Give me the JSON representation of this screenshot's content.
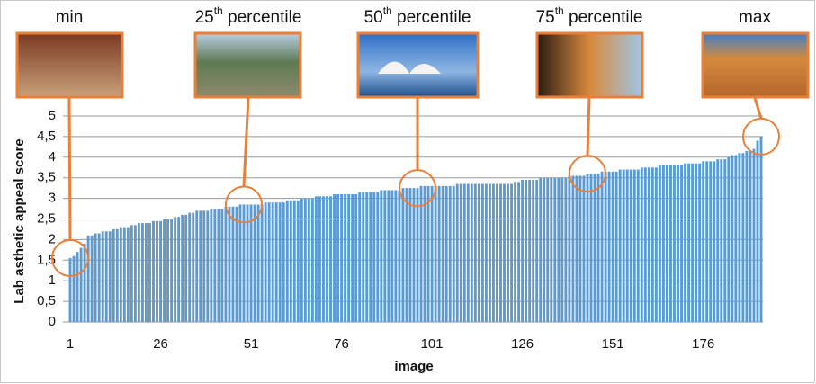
{
  "chart_data": {
    "type": "bar",
    "y_label": "Lab asthetic appeal score",
    "x_label": "image",
    "annotations": [
      {
        "text": "min"
      },
      {
        "text": "25",
        "sup": "th",
        "after": " percentile"
      },
      {
        "text": "50",
        "sup": "th",
        "after": " percentile"
      },
      {
        "text": "75",
        "sup": "th",
        "after": " percentile"
      },
      {
        "text": "max"
      }
    ],
    "color": "#5b9bd5",
    "grid": true,
    "ylim": [
      0,
      5
    ],
    "yticks": [
      0,
      {
        "value": 0.5,
        "label": "0,5"
      },
      1,
      {
        "value": 1.5,
        "label": "1,5"
      },
      2,
      {
        "value": 2.5,
        "label": "2,5"
      },
      3,
      {
        "value": 3.5,
        "label": "3,5"
      },
      4,
      {
        "value": 4.5,
        "label": "4,5"
      },
      5
    ],
    "categories": [
      "1",
      null,
      null,
      null,
      null,
      null,
      null,
      null,
      null,
      null,
      null,
      null,
      null,
      null,
      null,
      null,
      null,
      null,
      null,
      null,
      null,
      null,
      null,
      null,
      null,
      "26",
      null,
      null,
      null,
      null,
      null,
      null,
      null,
      null,
      null,
      null,
      null,
      null,
      null,
      null,
      null,
      null,
      null,
      null,
      null,
      null,
      null,
      null,
      null,
      null,
      "51",
      null,
      null,
      null,
      null,
      null,
      null,
      null,
      null,
      null,
      null,
      null,
      null,
      null,
      null,
      null,
      null,
      null,
      null,
      null,
      null,
      null,
      null,
      null,
      null,
      "76",
      null,
      null,
      null,
      null,
      null,
      null,
      null,
      null,
      null,
      null,
      null,
      null,
      null,
      null,
      null,
      null,
      null,
      null,
      null,
      null,
      null,
      null,
      null,
      null,
      "101",
      null,
      null,
      null,
      null,
      null,
      null,
      null,
      null,
      null,
      null,
      null,
      null,
      null,
      null,
      null,
      null,
      null,
      null,
      null,
      null,
      null,
      null,
      null,
      null,
      "126",
      null,
      null,
      null,
      null,
      null,
      null,
      null,
      null,
      null,
      null,
      null,
      null,
      null,
      null,
      null,
      null,
      null,
      null,
      null,
      null,
      null,
      null,
      null,
      null,
      "151",
      null,
      null,
      null,
      null,
      null,
      null,
      null,
      null,
      null,
      null,
      null,
      null,
      null,
      null,
      null,
      null,
      null,
      null,
      null,
      null,
      null,
      null,
      null,
      null,
      "176",
      null,
      null,
      null,
      null,
      null,
      null,
      null,
      null,
      null,
      null,
      null,
      null,
      null,
      null,
      null,
      null
    ],
    "values": [
      1.55,
      1.6,
      1.7,
      1.8,
      1.9,
      2.1,
      2.1,
      2.15,
      2.15,
      2.2,
      2.2,
      2.2,
      2.25,
      2.25,
      2.3,
      2.3,
      2.3,
      2.35,
      2.35,
      2.4,
      2.4,
      2.4,
      2.4,
      2.45,
      2.45,
      2.45,
      2.5,
      2.5,
      2.5,
      2.55,
      2.55,
      2.6,
      2.6,
      2.65,
      2.65,
      2.7,
      2.7,
      2.7,
      2.7,
      2.75,
      2.75,
      2.75,
      2.75,
      2.8,
      2.8,
      2.8,
      2.8,
      2.85,
      2.85,
      2.85,
      2.85,
      2.85,
      2.85,
      2.85,
      2.9,
      2.9,
      2.9,
      2.9,
      2.9,
      2.9,
      2.95,
      2.95,
      2.95,
      2.95,
      3,
      3,
      3,
      3,
      3.05,
      3.05,
      3.05,
      3.05,
      3.05,
      3.1,
      3.1,
      3.1,
      3.1,
      3.1,
      3.1,
      3.1,
      3.15,
      3.15,
      3.15,
      3.15,
      3.15,
      3.15,
      3.2,
      3.2,
      3.2,
      3.2,
      3.2,
      3.2,
      3.25,
      3.25,
      3.25,
      3.25,
      3.25,
      3.3,
      3.3,
      3.3,
      3.3,
      3.3,
      3.3,
      3.3,
      3.3,
      3.3,
      3.3,
      3.35,
      3.35,
      3.35,
      3.35,
      3.35,
      3.35,
      3.35,
      3.35,
      3.35,
      3.35,
      3.35,
      3.35,
      3.35,
      3.35,
      3.35,
      3.35,
      3.4,
      3.4,
      3.45,
      3.45,
      3.45,
      3.45,
      3.45,
      3.5,
      3.5,
      3.5,
      3.5,
      3.5,
      3.5,
      3.5,
      3.5,
      3.55,
      3.55,
      3.55,
      3.55,
      3.55,
      3.6,
      3.6,
      3.6,
      3.6,
      3.65,
      3.65,
      3.65,
      3.65,
      3.65,
      3.7,
      3.7,
      3.7,
      3.7,
      3.7,
      3.7,
      3.75,
      3.75,
      3.75,
      3.75,
      3.75,
      3.8,
      3.8,
      3.8,
      3.8,
      3.8,
      3.8,
      3.8,
      3.85,
      3.85,
      3.85,
      3.85,
      3.85,
      3.9,
      3.9,
      3.9,
      3.9,
      3.95,
      3.95,
      3.95,
      4,
      4.05,
      4.05,
      4.1,
      4.1,
      4.15,
      4.15,
      4.2,
      4.4,
      4.5
    ]
  }
}
